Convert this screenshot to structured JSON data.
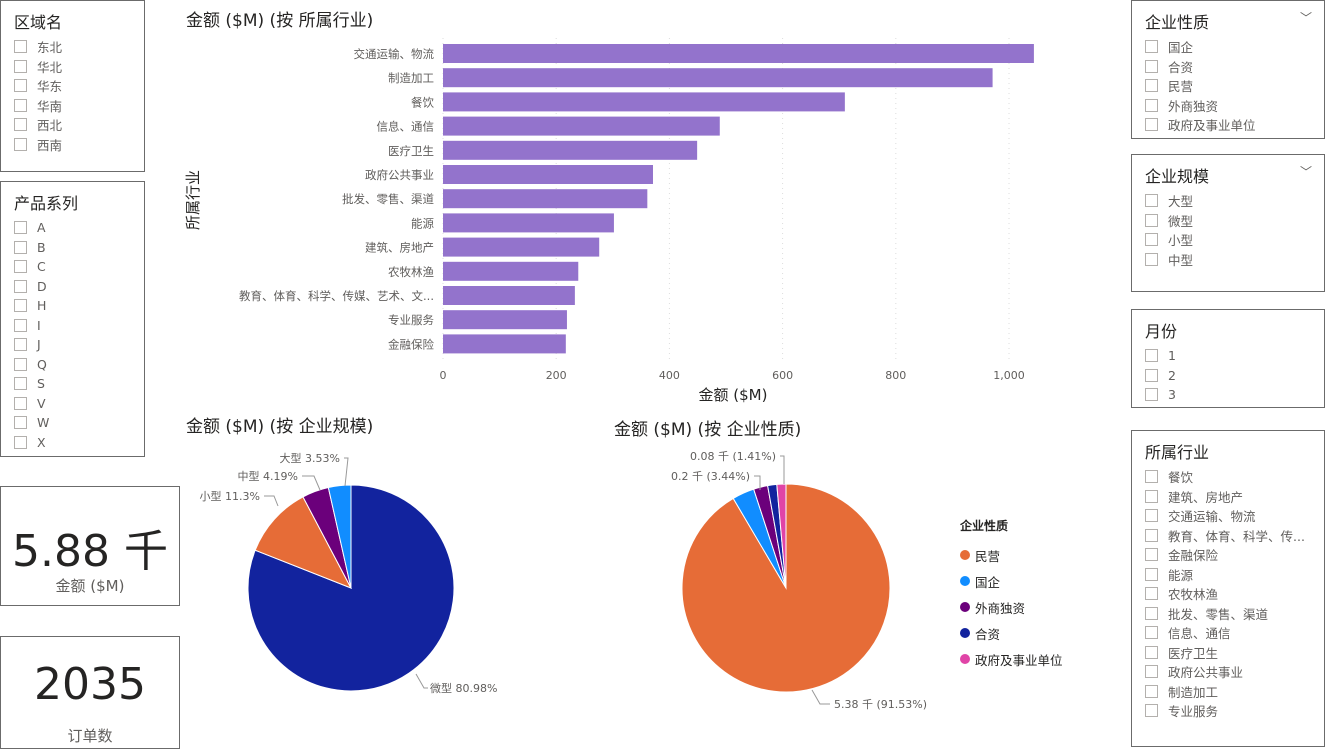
{
  "slicers": {
    "region": {
      "title": "区域名",
      "items": [
        "东北",
        "华北",
        "华东",
        "华南",
        "西北",
        "西南"
      ]
    },
    "product": {
      "title": "产品系列",
      "items": [
        "A",
        "B",
        "C",
        "D",
        "H",
        "I",
        "J",
        "Q",
        "S",
        "V",
        "W",
        "X"
      ]
    },
    "nature": {
      "title": "企业性质",
      "items": [
        "国企",
        "合资",
        "民营",
        "外商独资",
        "政府及事业单位"
      ]
    },
    "scale": {
      "title": "企业规模",
      "items": [
        "大型",
        "微型",
        "小型",
        "中型"
      ]
    },
    "month": {
      "title": "月份",
      "items": [
        "1",
        "2",
        "3"
      ]
    },
    "industry": {
      "title": "所属行业",
      "items": [
        "餐饮",
        "建筑、房地产",
        "交通运输、物流",
        "教育、体育、科学、传...",
        "金融保险",
        "能源",
        "农牧林渔",
        "批发、零售、渠道",
        "信息、通信",
        "医疗卫生",
        "政府公共事业",
        "制造加工",
        "专业服务"
      ]
    }
  },
  "cards": {
    "amount": {
      "value": "5.88 千",
      "label": "金额 ($M)"
    },
    "orders": {
      "value": "2035",
      "label": "订单数"
    }
  },
  "chart_data": [
    {
      "type": "bar",
      "title": "金额 ($M) (按 所属行业)",
      "xlabel": "金额 ($M)",
      "ylabel": "所属行业",
      "xlim": [
        0,
        1050
      ],
      "xticks": [
        "0",
        "200",
        "400",
        "600",
        "800",
        "1,000"
      ],
      "categories": [
        "交通运输、物流",
        "制造加工",
        "餐饮",
        "信息、通信",
        "医疗卫生",
        "政府公共事业",
        "批发、零售、渠道",
        "能源",
        "建筑、房地产",
        "农牧林渔",
        "教育、体育、科学、传媒、艺术、文...",
        "专业服务",
        "金融保险"
      ],
      "values": [
        1044,
        971,
        710,
        489,
        449,
        371,
        361,
        302,
        276,
        239,
        233,
        219,
        217
      ],
      "color": "#9373cc"
    },
    {
      "type": "pie",
      "title": "金额 ($M) (按 企业规模)",
      "categories": [
        "微型",
        "小型",
        "中型",
        "大型"
      ],
      "values": [
        80.98,
        11.3,
        4.19,
        3.53
      ],
      "labels": [
        "微型 80.98%",
        "小型 11.3%",
        "中型 4.19%",
        "大型 3.53%"
      ],
      "colors": [
        "#12239e",
        "#e66c37",
        "#6b007b",
        "#118dff"
      ]
    },
    {
      "type": "pie",
      "title": "金额 ($M) (按 企业性质)",
      "legend_title": "企业性质",
      "categories": [
        "民营",
        "国企",
        "外商独资",
        "合资",
        "政府及事业单位"
      ],
      "values": [
        91.53,
        3.44,
        2.2,
        1.42,
        1.41
      ],
      "labels": [
        "5.38 千 (91.53%)",
        "0.2 千 (3.44%)",
        "",
        "",
        "0.08 千 (1.41%)"
      ],
      "colors": [
        "#e66c37",
        "#118dff",
        "#6b007b",
        "#12239e",
        "#e044a7"
      ]
    }
  ]
}
